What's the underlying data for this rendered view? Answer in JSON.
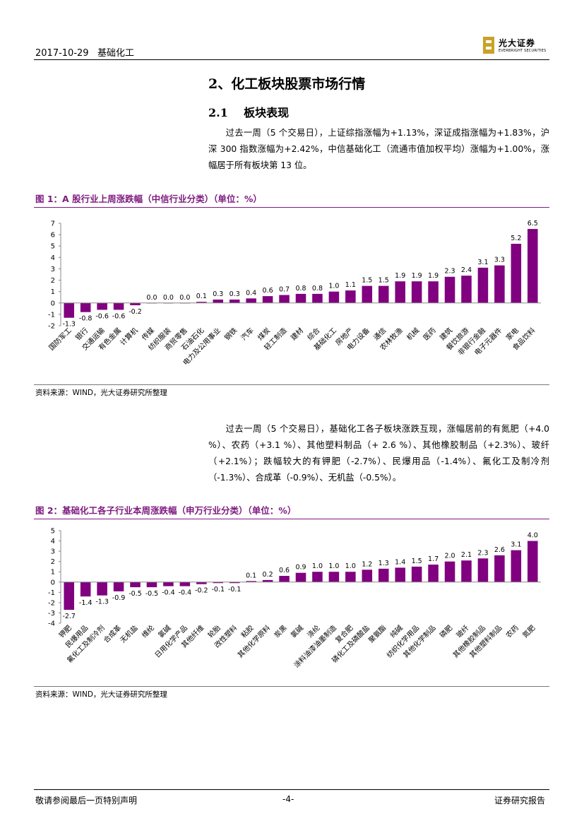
{
  "header": {
    "date": "2017-10-29",
    "category": "基础化工",
    "logo_cn": "光大证券",
    "logo_en": "EVERBRIGHT SECURITIES"
  },
  "section_title": "2、化工板块股票市场行情",
  "subsection_number": "2.1",
  "subsection_title": "板块表现",
  "para1": "过去一周（5 个交易日），上证综指涨幅为+1.13%，深证成指涨幅为+1.83%，沪深 300 指数涨幅为+2.42%，中信基础化工（流通市值加权平均）涨幅为+1.00%，涨幅居于所有板块第 13 位。",
  "para2": "过去一周（5 个交易日），基础化工各子板块涨跌互现，涨幅居前的有氮肥（+4.0 %）、农药（+3.1 %）、其他塑料制品（+ 2.6 %）、其他橡胶制品（+2.3%）、玻纤（+2.1%）；跌幅较大的有钾肥（-2.7%）、民爆用品（-1.4%）、氟化工及制冷剂（-1.3%）、合成革（-0.9%）、无机盐（-0.5%）。",
  "fig1": {
    "caption": "图 1：A 股行业上周涨跌幅（中信行业分类）（单位：%）",
    "source": "资料来源：WIND，光大证券研究所整理"
  },
  "fig2": {
    "caption": "图 2：基础化工各子行业本周涨跌幅（申万行业分类）（单位：%）",
    "source": "资料来源：WIND，光大证券研究所整理"
  },
  "chart_data": [
    {
      "type": "bar",
      "title": "图 1：A 股行业上周涨跌幅（中信行业分类）（单位：%）",
      "categories": [
        "国防军工",
        "银行",
        "交通运输",
        "有色金属",
        "计算机",
        "传媒",
        "纺织服装",
        "商贸零售",
        "石油石化",
        "电力及公用事业",
        "钢铁",
        "汽车",
        "煤炭",
        "轻工制造",
        "建材",
        "综合",
        "基础化工",
        "房地产",
        "电力设备",
        "通信",
        "农林牧渔",
        "机械",
        "医药",
        "建筑",
        "餐饮旅游",
        "非银行金融",
        "电子元器件",
        "家电",
        "食品饮料"
      ],
      "values": [
        -1.3,
        -0.8,
        -0.6,
        -0.6,
        -0.2,
        0.0,
        0.0,
        0.0,
        0.1,
        0.3,
        0.3,
        0.4,
        0.6,
        0.7,
        0.8,
        0.8,
        1.0,
        1.1,
        1.5,
        1.5,
        1.9,
        1.9,
        1.9,
        2.3,
        2.4,
        3.1,
        3.3,
        5.2,
        6.5
      ],
      "labels": [
        "-1.3",
        "-0.8",
        "-0.6",
        "-0.6",
        "-0.2",
        "0.0",
        "0.0",
        "0.0",
        "0.1",
        "0.3",
        "0.3",
        "0.4",
        "0.6",
        "0.7",
        "0.8",
        "0.8",
        "1.0",
        "1.1",
        "1.5",
        "1.5",
        "1.9",
        "1.9",
        "1.9",
        "2.3",
        "2.4",
        "3.1",
        "3.3",
        "5.2",
        "6.5"
      ],
      "ylim": [
        -2,
        7
      ],
      "yticks": [
        "-2",
        "-1",
        "0",
        "1",
        "2",
        "3",
        "4",
        "5",
        "6",
        "7"
      ],
      "color": "#800080"
    },
    {
      "type": "bar",
      "title": "图 2：基础化工各子行业本周涨跌幅（申万行业分类）（单位：%）",
      "categories": [
        "钾肥",
        "民爆用品",
        "氟化工及制冷剂",
        "合成革",
        "无机盐",
        "维纶",
        "氯碱",
        "日用化学产品",
        "其他纤维",
        "轮胎",
        "改性塑料",
        "粘胶",
        "其他化学原料",
        "炭黑",
        "氯碱",
        "涤纶",
        "涂料油漆油墨制造",
        "复合肥",
        "磷化工及磷酸盐",
        "聚氨酯",
        "纯碱",
        "纺织化学用品",
        "其他化学制品",
        "磷肥",
        "玻纤",
        "其他橡胶制品",
        "其他塑料制品",
        "农药",
        "氮肥"
      ],
      "values": [
        -2.7,
        -1.4,
        -1.3,
        -0.9,
        -0.5,
        -0.5,
        -0.4,
        -0.4,
        -0.2,
        -0.1,
        -0.1,
        0.1,
        0.2,
        0.6,
        0.9,
        1.0,
        1.0,
        1.0,
        1.2,
        1.3,
        1.4,
        1.5,
        1.7,
        2.0,
        2.1,
        2.3,
        2.6,
        3.1,
        4.0
      ],
      "labels": [
        "-2.7",
        "-1.4",
        "-1.3",
        "-0.9",
        "-0.5",
        "-0.5",
        "-0.4",
        "-0.4",
        "-0.2",
        "-0.1",
        "-0.1",
        "0.1",
        "0.2",
        "0.6",
        "0.9",
        "1.0",
        "1.0",
        "1.0",
        "1.2",
        "1.3",
        "1.4",
        "1.5",
        "1.7",
        "2.0",
        "2.1",
        "2.3",
        "2.6",
        "3.1",
        "4.0"
      ],
      "ylim": [
        -4,
        5
      ],
      "yticks": [
        "-4",
        "-3",
        "-2",
        "-1",
        "0",
        "1",
        "2",
        "3",
        "4",
        "5"
      ],
      "color": "#800080"
    }
  ],
  "footer": {
    "left": "敬请参阅最后一页特别声明",
    "page": "-4-",
    "right": "证券研究报告"
  }
}
